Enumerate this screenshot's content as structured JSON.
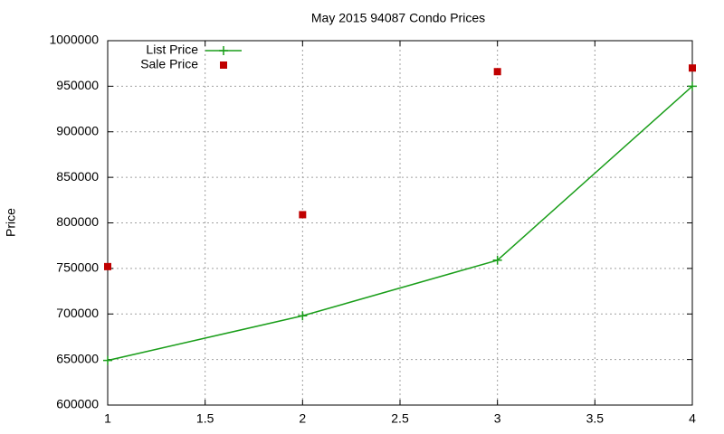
{
  "chart_data": {
    "type": "line",
    "title": "May 2015 94087 Condo Prices",
    "y_label": "Price",
    "x": [
      1,
      2,
      3,
      4
    ],
    "series": [
      {
        "name": "List Price",
        "color": "#1a9e1a",
        "style": "linespoints",
        "values": [
          649000,
          698000,
          759000,
          950000
        ]
      },
      {
        "name": "Sale Price",
        "color": "#c00000",
        "style": "points",
        "values": [
          752000,
          809000,
          966000,
          970000
        ]
      }
    ],
    "xlim": [
      1,
      4
    ],
    "xticks": [
      1,
      1.5,
      2,
      2.5,
      3,
      3.5,
      4
    ],
    "ylim": [
      600000,
      1000000
    ],
    "yticks": [
      600000,
      650000,
      700000,
      750000,
      800000,
      850000,
      900000,
      950000,
      1000000
    ],
    "grid": true,
    "legend": "top left"
  }
}
